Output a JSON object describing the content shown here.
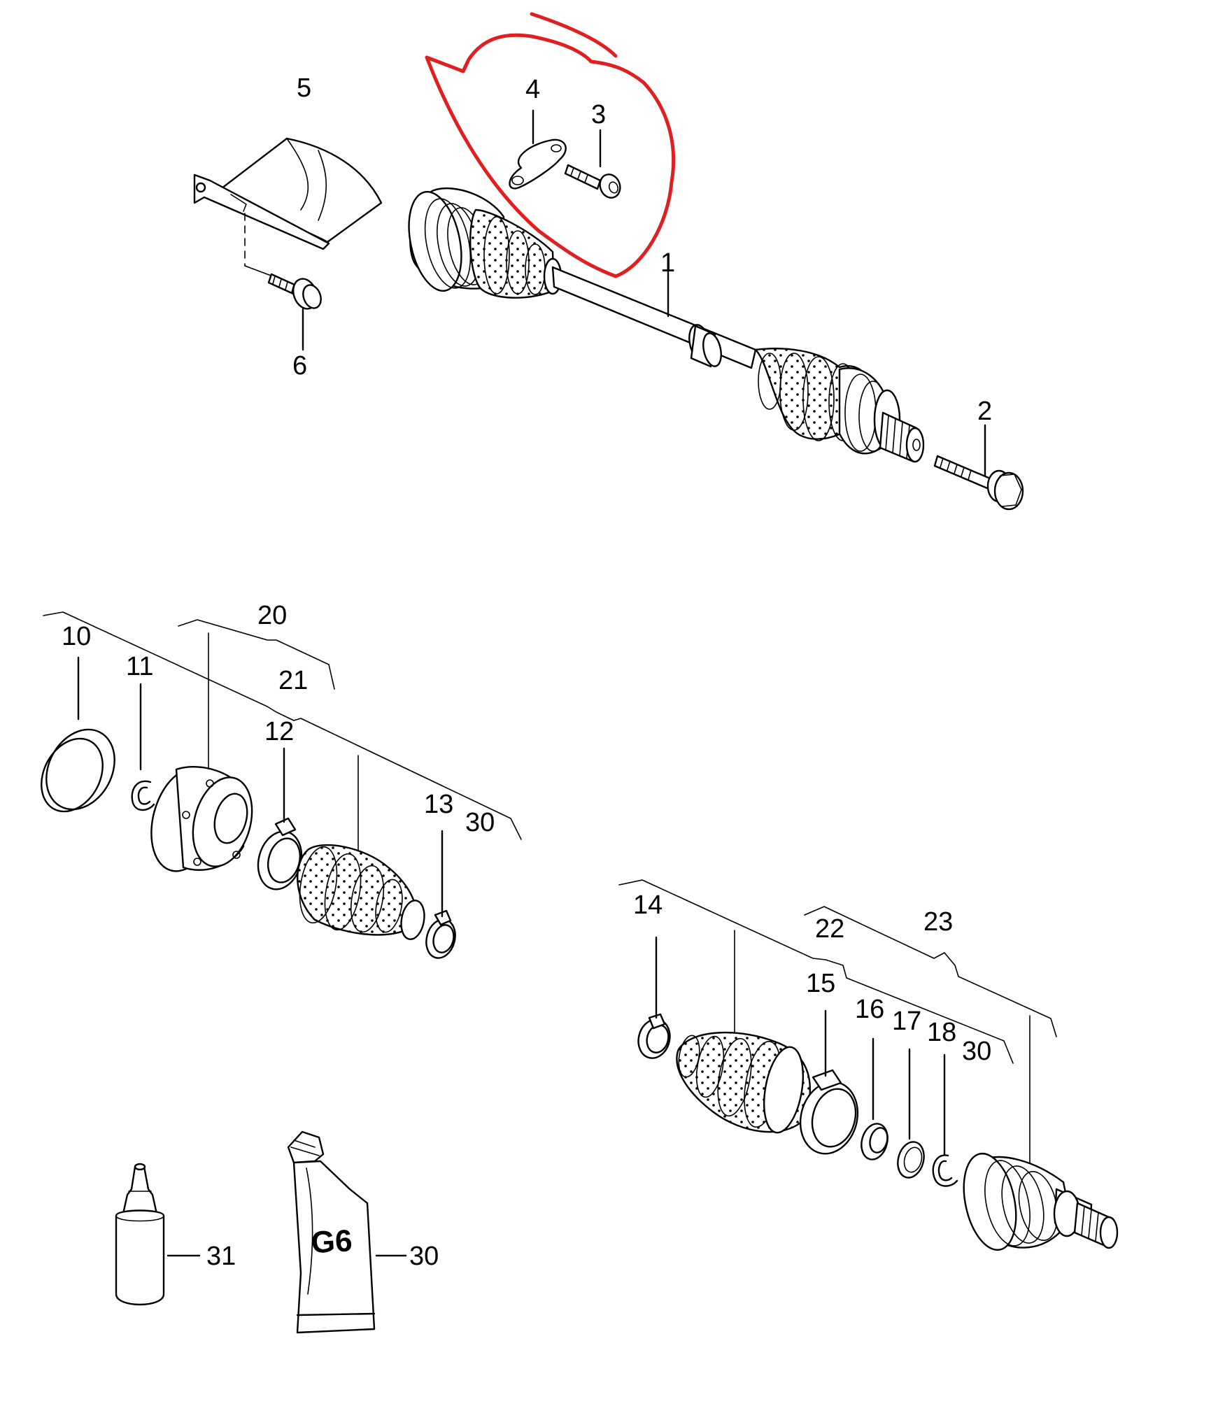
{
  "diagram": {
    "callouts": [
      {
        "id": "c1",
        "text": "1"
      },
      {
        "id": "c2",
        "text": "2"
      },
      {
        "id": "c3",
        "text": "3"
      },
      {
        "id": "c4",
        "text": "4"
      },
      {
        "id": "c5",
        "text": "5"
      },
      {
        "id": "c6",
        "text": "6"
      },
      {
        "id": "c10",
        "text": "10"
      },
      {
        "id": "c11",
        "text": "11"
      },
      {
        "id": "c12",
        "text": "12"
      },
      {
        "id": "c13",
        "text": "13"
      },
      {
        "id": "c14",
        "text": "14"
      },
      {
        "id": "c15",
        "text": "15"
      },
      {
        "id": "c16",
        "text": "16"
      },
      {
        "id": "c17",
        "text": "17"
      },
      {
        "id": "c18",
        "text": "18"
      },
      {
        "id": "c20",
        "text": "20"
      },
      {
        "id": "c21",
        "text": "21"
      },
      {
        "id": "c22",
        "text": "22"
      },
      {
        "id": "c23",
        "text": "23"
      },
      {
        "id": "c30a",
        "text": "30"
      },
      {
        "id": "c30b",
        "text": "30"
      },
      {
        "id": "c30c",
        "text": "30"
      },
      {
        "id": "c31",
        "text": "31"
      }
    ],
    "tube_label": "G6",
    "annotation_color": "#e02020",
    "line_color": "#000000"
  }
}
